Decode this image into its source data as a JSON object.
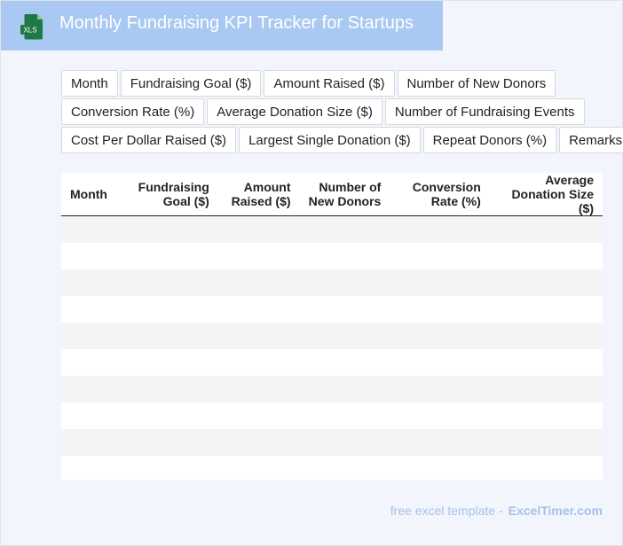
{
  "header": {
    "title": "Monthly Fundraising KPI Tracker for Startups",
    "icon_label": "XLS",
    "icon": "xls-file-icon"
  },
  "chips": [
    [
      "Month",
      "Fundraising Goal ($)",
      "Amount Raised ($)",
      "Number of New Donors"
    ],
    [
      "Conversion Rate (%)",
      "Average Donation Size ($)",
      "Number of Fundraising Events"
    ],
    [
      "Cost Per Dollar Raised ($)",
      "Largest Single Donation ($)",
      "Repeat Donors (%)",
      "Remarks"
    ]
  ],
  "table": {
    "columns": [
      "Month",
      "Fundraising\nGoal ($)",
      "Amount\nRaised ($)",
      "Number of\nNew Donors",
      "Conversion\nRate (%)",
      "Average\nDonation Size ($)"
    ],
    "empty_rows": 10
  },
  "footer": {
    "prefix": "free excel template -",
    "brand": "ExcelTimer.com"
  },
  "colors": {
    "header_bg": "#a9c8f2",
    "page_bg": "#f2f6fc",
    "icon_green": "#1e7a45",
    "footer_text": "#a7c0e6"
  }
}
